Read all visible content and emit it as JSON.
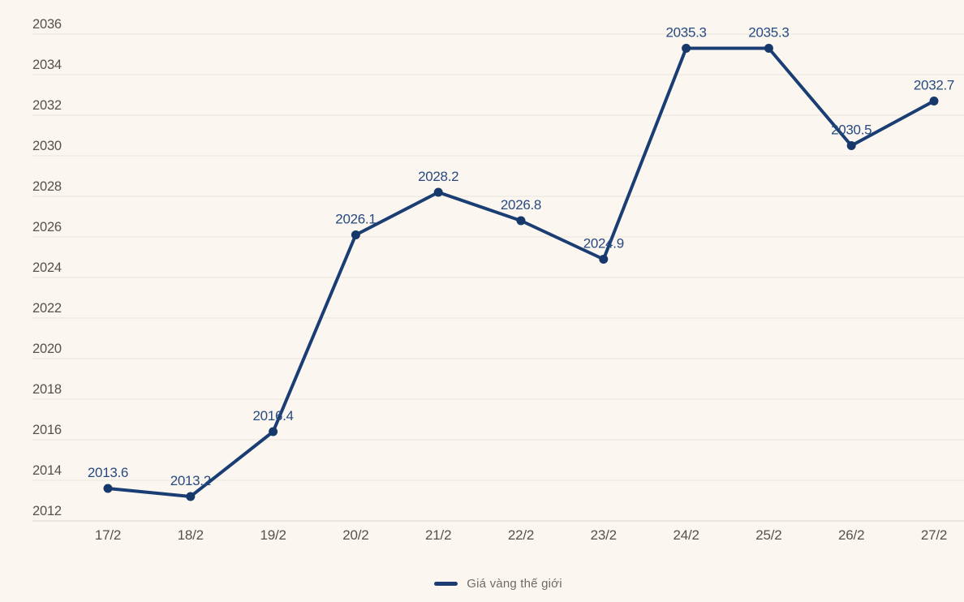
{
  "chart_data": {
    "type": "line",
    "categories": [
      "17/2",
      "18/2",
      "19/2",
      "20/2",
      "21/2",
      "22/2",
      "23/2",
      "24/2",
      "25/2",
      "26/2",
      "27/2"
    ],
    "series": [
      {
        "name": "Giá vàng thế giới",
        "values": [
          2013.6,
          2013.2,
          2016.4,
          2026.1,
          2028.2,
          2026.8,
          2024.9,
          2035.3,
          2035.3,
          2030.5,
          2032.7
        ]
      }
    ],
    "data_labels": [
      "2013.6",
      "2013.2",
      "2016.4",
      "2026.1",
      "2028.2",
      "2026.8",
      "2024.9",
      "2035.3",
      "2035.3",
      "2030.5",
      "2032.7"
    ],
    "title": "",
    "xlabel": "",
    "ylabel": "",
    "ylim": [
      2012,
      2036
    ],
    "ytick_step": 2,
    "ytick_labels": [
      "2036",
      "2034",
      "2032",
      "2030",
      "2028",
      "2026",
      "2024",
      "2022",
      "2020",
      "2018",
      "2016",
      "2014",
      "2012"
    ],
    "grid": "horizontal",
    "legend_position": "bottom-center",
    "marker": "circle",
    "colors": {
      "background": "#fbf7f0",
      "gridline": "#e8e4dc",
      "axis_line": "#d9d5cc",
      "tick_text": "#55514b",
      "line": "#1a3e73",
      "point": "#16386b",
      "data_label": "#274a80",
      "legend_text": "#6e6a66",
      "legend_marker": "#1a3e73"
    }
  },
  "legend": {
    "label": "Giá vàng thế giới"
  }
}
